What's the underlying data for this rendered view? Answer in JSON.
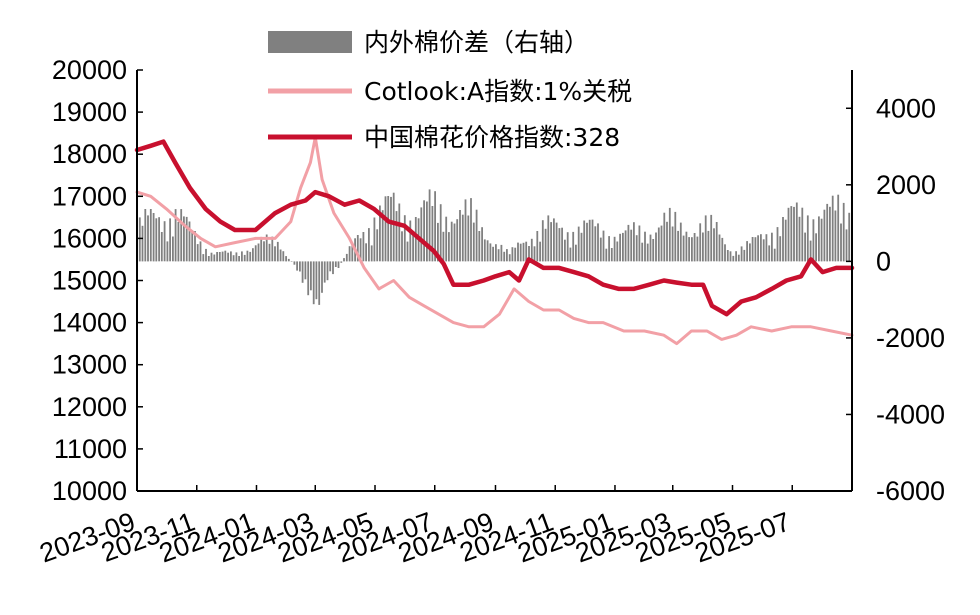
{
  "chart_data": {
    "type": "line",
    "title": "",
    "xlabel": "",
    "ylabel": "",
    "y_left": {
      "range": [
        10000,
        20000
      ],
      "ticks": [
        "10000",
        "11000",
        "12000",
        "13000",
        "14000",
        "15000",
        "16000",
        "17000",
        "18000",
        "19000",
        "20000"
      ]
    },
    "y_right": {
      "range": [
        -6000,
        5000
      ],
      "ticks": [
        "4000",
        "2000",
        "0",
        "-2000",
        "-4000",
        "-6000"
      ]
    },
    "x_range": [
      "2023-09-01",
      "2025-08-31"
    ],
    "x_ticks": [
      "2023-09",
      "2023-11",
      "2024-01",
      "2024-03",
      "2024-05",
      "2024-07",
      "2024-09",
      "2024-11",
      "2025-01",
      "2025-03",
      "2025-05",
      "2025-07"
    ],
    "legend_position": "top",
    "grid": false,
    "series": [
      {
        "name": "内外棉价差（右轴）",
        "type": "bar",
        "axis": "right",
        "color": "#808080",
        "points": [
          [
            "2023-09-01",
            1000
          ],
          [
            "2023-09-20",
            1300
          ],
          [
            "2023-10-10",
            1500
          ],
          [
            "2023-10-25",
            900
          ],
          [
            "2023-11-15",
            300
          ],
          [
            "2023-12-10",
            200
          ],
          [
            "2024-01-05",
            600
          ],
          [
            "2024-01-25",
            500
          ],
          [
            "2024-02-10",
            -200
          ],
          [
            "2024-02-25",
            -800
          ],
          [
            "2024-03-05",
            -1300
          ],
          [
            "2024-03-15",
            -600
          ],
          [
            "2024-03-31",
            100
          ],
          [
            "2024-04-15",
            800
          ],
          [
            "2024-05-01",
            1400
          ],
          [
            "2024-05-20",
            1600
          ],
          [
            "2024-06-10",
            1400
          ],
          [
            "2024-06-30",
            1600
          ],
          [
            "2024-07-20",
            1500
          ],
          [
            "2024-08-10",
            1300
          ],
          [
            "2024-08-31",
            600
          ],
          [
            "2024-09-15",
            200
          ],
          [
            "2024-10-01",
            700
          ],
          [
            "2024-10-20",
            1000
          ],
          [
            "2024-11-10",
            1000
          ],
          [
            "2024-11-30",
            1000
          ],
          [
            "2024-12-20",
            900
          ],
          [
            "2025-01-10",
            800
          ],
          [
            "2025-01-31",
            900
          ],
          [
            "2025-02-20",
            1200
          ],
          [
            "2025-03-10",
            1000
          ],
          [
            "2025-03-31",
            1100
          ],
          [
            "2025-04-15",
            900
          ],
          [
            "2025-05-01",
            300
          ],
          [
            "2025-05-20",
            500
          ],
          [
            "2025-06-10",
            1000
          ],
          [
            "2025-06-30",
            1300
          ],
          [
            "2025-07-20",
            1500
          ],
          [
            "2025-08-10",
            1400
          ],
          [
            "2025-08-31",
            1700
          ]
        ]
      },
      {
        "name": "Cotlook:A指数:1%关税",
        "type": "line",
        "axis": "left",
        "color": "#f2a0a6",
        "points": [
          [
            "2023-09-01",
            17100
          ],
          [
            "2023-09-15",
            17000
          ],
          [
            "2023-10-01",
            16700
          ],
          [
            "2023-10-20",
            16300
          ],
          [
            "2023-11-05",
            16000
          ],
          [
            "2023-11-20",
            15800
          ],
          [
            "2023-12-10",
            15900
          ],
          [
            "2023-12-31",
            16000
          ],
          [
            "2024-01-20",
            16000
          ],
          [
            "2024-02-05",
            16400
          ],
          [
            "2024-02-15",
            17200
          ],
          [
            "2024-02-25",
            17800
          ],
          [
            "2024-03-01",
            18400
          ],
          [
            "2024-03-08",
            17400
          ],
          [
            "2024-03-20",
            16600
          ],
          [
            "2024-04-05",
            16000
          ],
          [
            "2024-04-20",
            15300
          ],
          [
            "2024-05-05",
            14800
          ],
          [
            "2024-05-20",
            15000
          ],
          [
            "2024-06-05",
            14600
          ],
          [
            "2024-06-20",
            14400
          ],
          [
            "2024-07-05",
            14200
          ],
          [
            "2024-07-20",
            14000
          ],
          [
            "2024-08-05",
            13900
          ],
          [
            "2024-08-20",
            13900
          ],
          [
            "2024-09-05",
            14200
          ],
          [
            "2024-09-20",
            14800
          ],
          [
            "2024-10-05",
            14500
          ],
          [
            "2024-10-20",
            14300
          ],
          [
            "2024-11-05",
            14300
          ],
          [
            "2024-11-20",
            14100
          ],
          [
            "2024-12-05",
            14000
          ],
          [
            "2024-12-20",
            14000
          ],
          [
            "2025-01-10",
            13800
          ],
          [
            "2025-01-31",
            13800
          ],
          [
            "2025-02-20",
            13700
          ],
          [
            "2025-03-05",
            13500
          ],
          [
            "2025-03-20",
            13800
          ],
          [
            "2025-04-05",
            13800
          ],
          [
            "2025-04-20",
            13600
          ],
          [
            "2025-05-05",
            13700
          ],
          [
            "2025-05-20",
            13900
          ],
          [
            "2025-06-10",
            13800
          ],
          [
            "2025-06-30",
            13900
          ],
          [
            "2025-07-20",
            13900
          ],
          [
            "2025-08-10",
            13800
          ],
          [
            "2025-08-31",
            13700
          ]
        ]
      },
      {
        "name": "中国棉花价格指数:328",
        "type": "line",
        "axis": "left",
        "color": "#c8102e",
        "points": [
          [
            "2023-09-01",
            18100
          ],
          [
            "2023-09-15",
            18200
          ],
          [
            "2023-09-28",
            18300
          ],
          [
            "2023-10-10",
            17800
          ],
          [
            "2023-10-25",
            17200
          ],
          [
            "2023-11-10",
            16700
          ],
          [
            "2023-11-25",
            16400
          ],
          [
            "2023-12-10",
            16200
          ],
          [
            "2023-12-31",
            16200
          ],
          [
            "2024-01-20",
            16600
          ],
          [
            "2024-02-05",
            16800
          ],
          [
            "2024-02-20",
            16900
          ],
          [
            "2024-03-01",
            17100
          ],
          [
            "2024-03-15",
            17000
          ],
          [
            "2024-03-31",
            16800
          ],
          [
            "2024-04-15",
            16900
          ],
          [
            "2024-04-30",
            16700
          ],
          [
            "2024-05-15",
            16400
          ],
          [
            "2024-05-31",
            16300
          ],
          [
            "2024-06-15",
            16000
          ],
          [
            "2024-06-30",
            15700
          ],
          [
            "2024-07-10",
            15400
          ],
          [
            "2024-07-20",
            14900
          ],
          [
            "2024-08-05",
            14900
          ],
          [
            "2024-08-20",
            15000
          ],
          [
            "2024-09-01",
            15100
          ],
          [
            "2024-09-15",
            15200
          ],
          [
            "2024-09-25",
            15000
          ],
          [
            "2024-10-05",
            15500
          ],
          [
            "2024-10-20",
            15300
          ],
          [
            "2024-11-05",
            15300
          ],
          [
            "2024-11-20",
            15200
          ],
          [
            "2024-12-05",
            15100
          ],
          [
            "2024-12-20",
            14900
          ],
          [
            "2025-01-05",
            14800
          ],
          [
            "2025-01-20",
            14800
          ],
          [
            "2025-02-05",
            14900
          ],
          [
            "2025-02-20",
            15000
          ],
          [
            "2025-03-05",
            14950
          ],
          [
            "2025-03-20",
            14900
          ],
          [
            "2025-04-01",
            14900
          ],
          [
            "2025-04-10",
            14400
          ],
          [
            "2025-04-25",
            14200
          ],
          [
            "2025-05-10",
            14500
          ],
          [
            "2025-05-25",
            14600
          ],
          [
            "2025-06-10",
            14800
          ],
          [
            "2025-06-25",
            15000
          ],
          [
            "2025-07-10",
            15100
          ],
          [
            "2025-07-20",
            15500
          ],
          [
            "2025-08-01",
            15200
          ],
          [
            "2025-08-15",
            15300
          ],
          [
            "2025-08-31",
            15300
          ]
        ]
      }
    ]
  }
}
